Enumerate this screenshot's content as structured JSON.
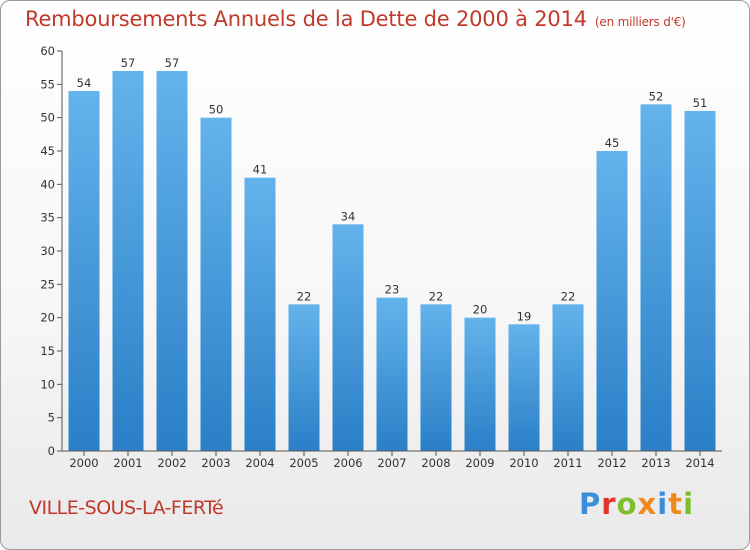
{
  "header": {
    "title": "Remboursements Annuels de la Dette de 2000 à 2014",
    "unit_note": "(en milliers d'€)"
  },
  "footer": {
    "city": "VILLE-SOUS-LA-FERTé",
    "logo_text": "Proxiti"
  },
  "colors": {
    "bar_top": "#63b3ec",
    "bar_bottom": "#2a7fc6",
    "title": "#c0392b"
  },
  "chart_data": {
    "type": "bar",
    "title": "Remboursements Annuels de la Dette de 2000 à 2014",
    "ylabel": "en milliers d'€",
    "xlabel": "",
    "categories": [
      "2000",
      "2001",
      "2002",
      "2003",
      "2004",
      "2005",
      "2006",
      "2007",
      "2008",
      "2009",
      "2010",
      "2011",
      "2012",
      "2013",
      "2014"
    ],
    "values": [
      54,
      57,
      57,
      50,
      41,
      22,
      34,
      23,
      22,
      20,
      19,
      22,
      45,
      52,
      51
    ],
    "ylim": [
      0,
      60
    ],
    "yticks": [
      0,
      5,
      10,
      15,
      20,
      25,
      30,
      35,
      40,
      45,
      50,
      55,
      60
    ],
    "grid": false
  }
}
